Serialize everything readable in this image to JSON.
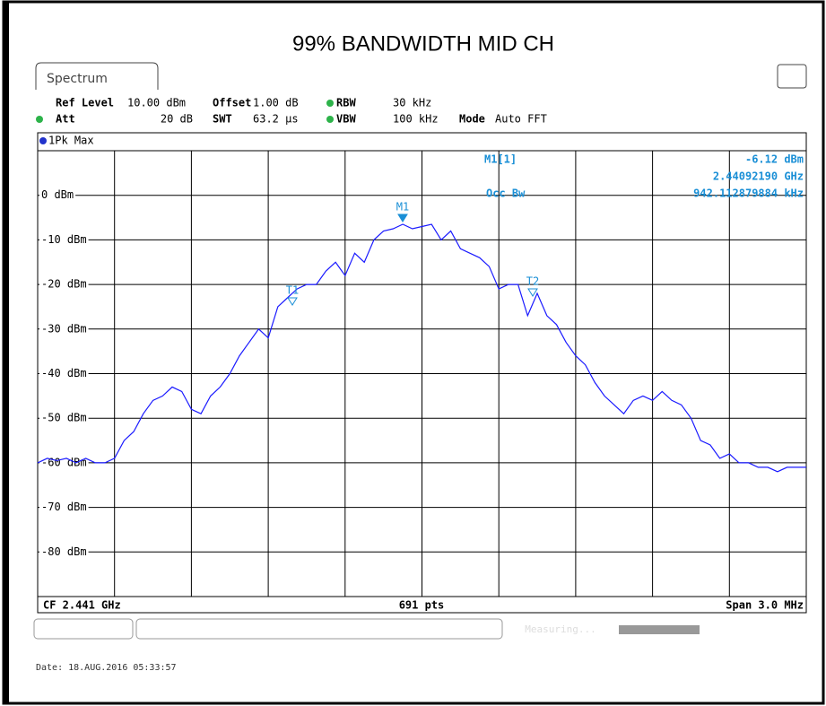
{
  "chart_data": {
    "type": "line",
    "title": "99% BANDWIDTH MID CH",
    "tab": "Spectrum",
    "settings": [
      {
        "name": "Ref Level",
        "value": "10.00 dBm"
      },
      {
        "name": "Offset",
        "value": "1.00 dB"
      },
      {
        "name": "RBW",
        "value": "30 kHz"
      },
      {
        "name": "Att",
        "value": "20 dB"
      },
      {
        "name": "SWT",
        "value": "63.2 µs"
      },
      {
        "name": "VBW",
        "value": "100 kHz"
      },
      {
        "name": "Mode",
        "value": "Auto FFT"
      }
    ],
    "trace_label": "1Pk Max",
    "marker_readout": {
      "marker": "M1[1]",
      "level": "-6.12 dBm",
      "frequency": "2.44092190 GHz",
      "occ_label": "Occ Bw",
      "occ_value": "942.112879884 kHz"
    },
    "markers": [
      "M1",
      "T1",
      "T2"
    ],
    "footer": {
      "center_freq": "CF 2.441 GHz",
      "points": "691 pts",
      "span": "Span 3.0 MHz"
    },
    "status": "Measuring...",
    "date": "Date: 18.AUG.2016  05:33:57",
    "series": [
      {
        "name": "1Pk Max",
        "color": "#1a1aff",
        "values": [
          -60,
          -59,
          -59.5,
          -59,
          -60,
          -59,
          -60,
          -60,
          -59,
          -55,
          -53,
          -49,
          -46,
          -45,
          -43,
          -44,
          -48,
          -49,
          -45,
          -43,
          -40,
          -36,
          -33,
          -30,
          -32,
          -25,
          -23,
          -21,
          -20,
          -20,
          -17,
          -15,
          -18,
          -13,
          -15,
          -10,
          -8,
          -7.5,
          -6.5,
          -7.5,
          -7,
          -6.5,
          -10,
          -8,
          -12,
          -13,
          -14,
          -16,
          -21,
          -20,
          -20,
          -27,
          -22,
          -27,
          -29,
          -33,
          -36,
          -38,
          -42,
          -45,
          -47,
          -49,
          -46,
          -45,
          -46,
          -44,
          -46,
          -47,
          -50,
          -55,
          -56,
          -59,
          -58,
          -60,
          -60,
          -61,
          -61,
          -62,
          -61,
          -61,
          -61
        ]
      }
    ],
    "ylim": [
      -90,
      10
    ],
    "yticks": [
      {
        "value": 0,
        "label": "0 dBm"
      },
      {
        "value": -10,
        "label": "-10 dBm"
      },
      {
        "value": -20,
        "label": "-20 dBm"
      },
      {
        "value": -30,
        "label": "-30 dBm"
      },
      {
        "value": -40,
        "label": "-40 dBm"
      },
      {
        "value": -50,
        "label": "-50 dBm"
      },
      {
        "value": -60,
        "label": "-60 dBm"
      },
      {
        "value": -70,
        "label": "-70 dBm"
      },
      {
        "value": -80,
        "label": "-80 dBm"
      }
    ],
    "grid": true
  }
}
